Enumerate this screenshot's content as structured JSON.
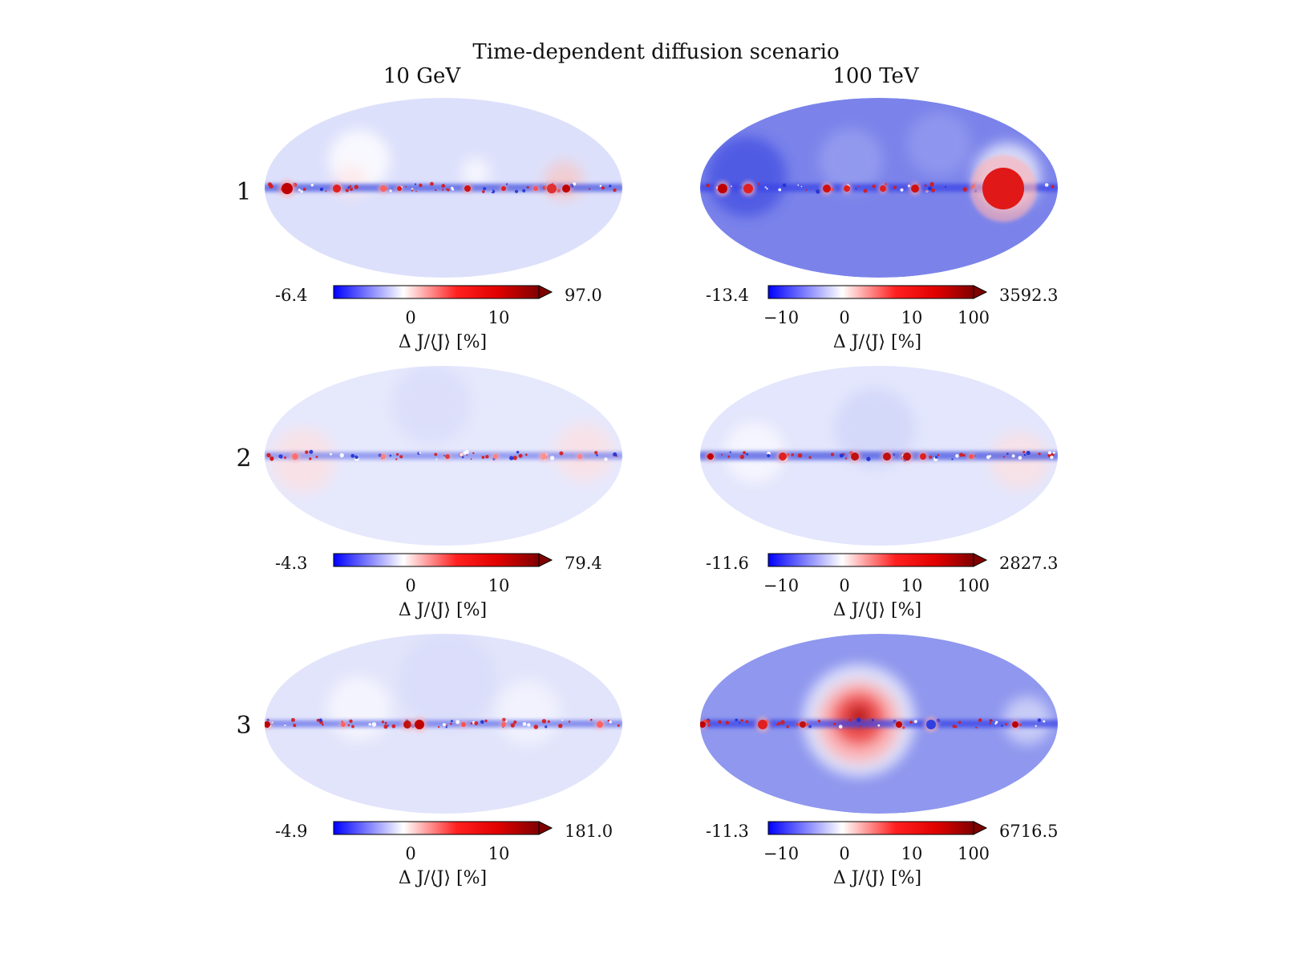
{
  "chart_data": {
    "type": "heatmap",
    "projection": "mollweide",
    "title": "Time-dependent diffusion scenario",
    "columns": [
      "10 GeV",
      "100 TeV"
    ],
    "rows": [
      "1",
      "2",
      "3"
    ],
    "colormap": "seismic (blue-white-red, extended max)",
    "colorbar_label": "Δ J/⟨J⟩ [%]",
    "panels": [
      {
        "row": "1",
        "column": "10 GeV",
        "vmin": "-6.4",
        "vmax": "97.0",
        "scale": "symlog",
        "ticks": [
          "0",
          "10"
        ],
        "background": "#dde0fb",
        "hotspots": "Galactic plane sources, strongest towards the right edge"
      },
      {
        "row": "1",
        "column": "100 TeV",
        "vmin": "-13.4",
        "vmax": "3592.3",
        "scale": "symlog",
        "ticks": [
          "−10",
          "0",
          "10",
          "100"
        ],
        "background": "#7b83ea",
        "hotspots": "large red blob near the right edge of the Galactic plane"
      },
      {
        "row": "2",
        "column": "10 GeV",
        "vmin": "-4.3",
        "vmax": "79.4",
        "scale": "symlog",
        "ticks": [
          "0",
          "10"
        ],
        "background": "#e6e8fc",
        "hotspots": "faint red regions near both ends of the plane"
      },
      {
        "row": "2",
        "column": "100 TeV",
        "vmin": "-11.6",
        "vmax": "2827.3",
        "scale": "symlog",
        "ticks": [
          "−10",
          "0",
          "10",
          "100"
        ],
        "background": "#e3e6fc",
        "hotspots": "many red sources along the plane"
      },
      {
        "row": "3",
        "column": "10 GeV",
        "vmin": "-4.9",
        "vmax": "181.0",
        "scale": "symlog",
        "ticks": [
          "0",
          "10"
        ],
        "background": "#e2e4fb",
        "hotspots": "sources scattered along the plane"
      },
      {
        "row": "3",
        "column": "100 TeV",
        "vmin": "-11.3",
        "vmax": "6716.5",
        "scale": "symlog",
        "ticks": [
          "−10",
          "0",
          "10",
          "100"
        ],
        "background": "#8f97ee",
        "hotspots": "large red region left of the Galactic centre"
      }
    ]
  }
}
